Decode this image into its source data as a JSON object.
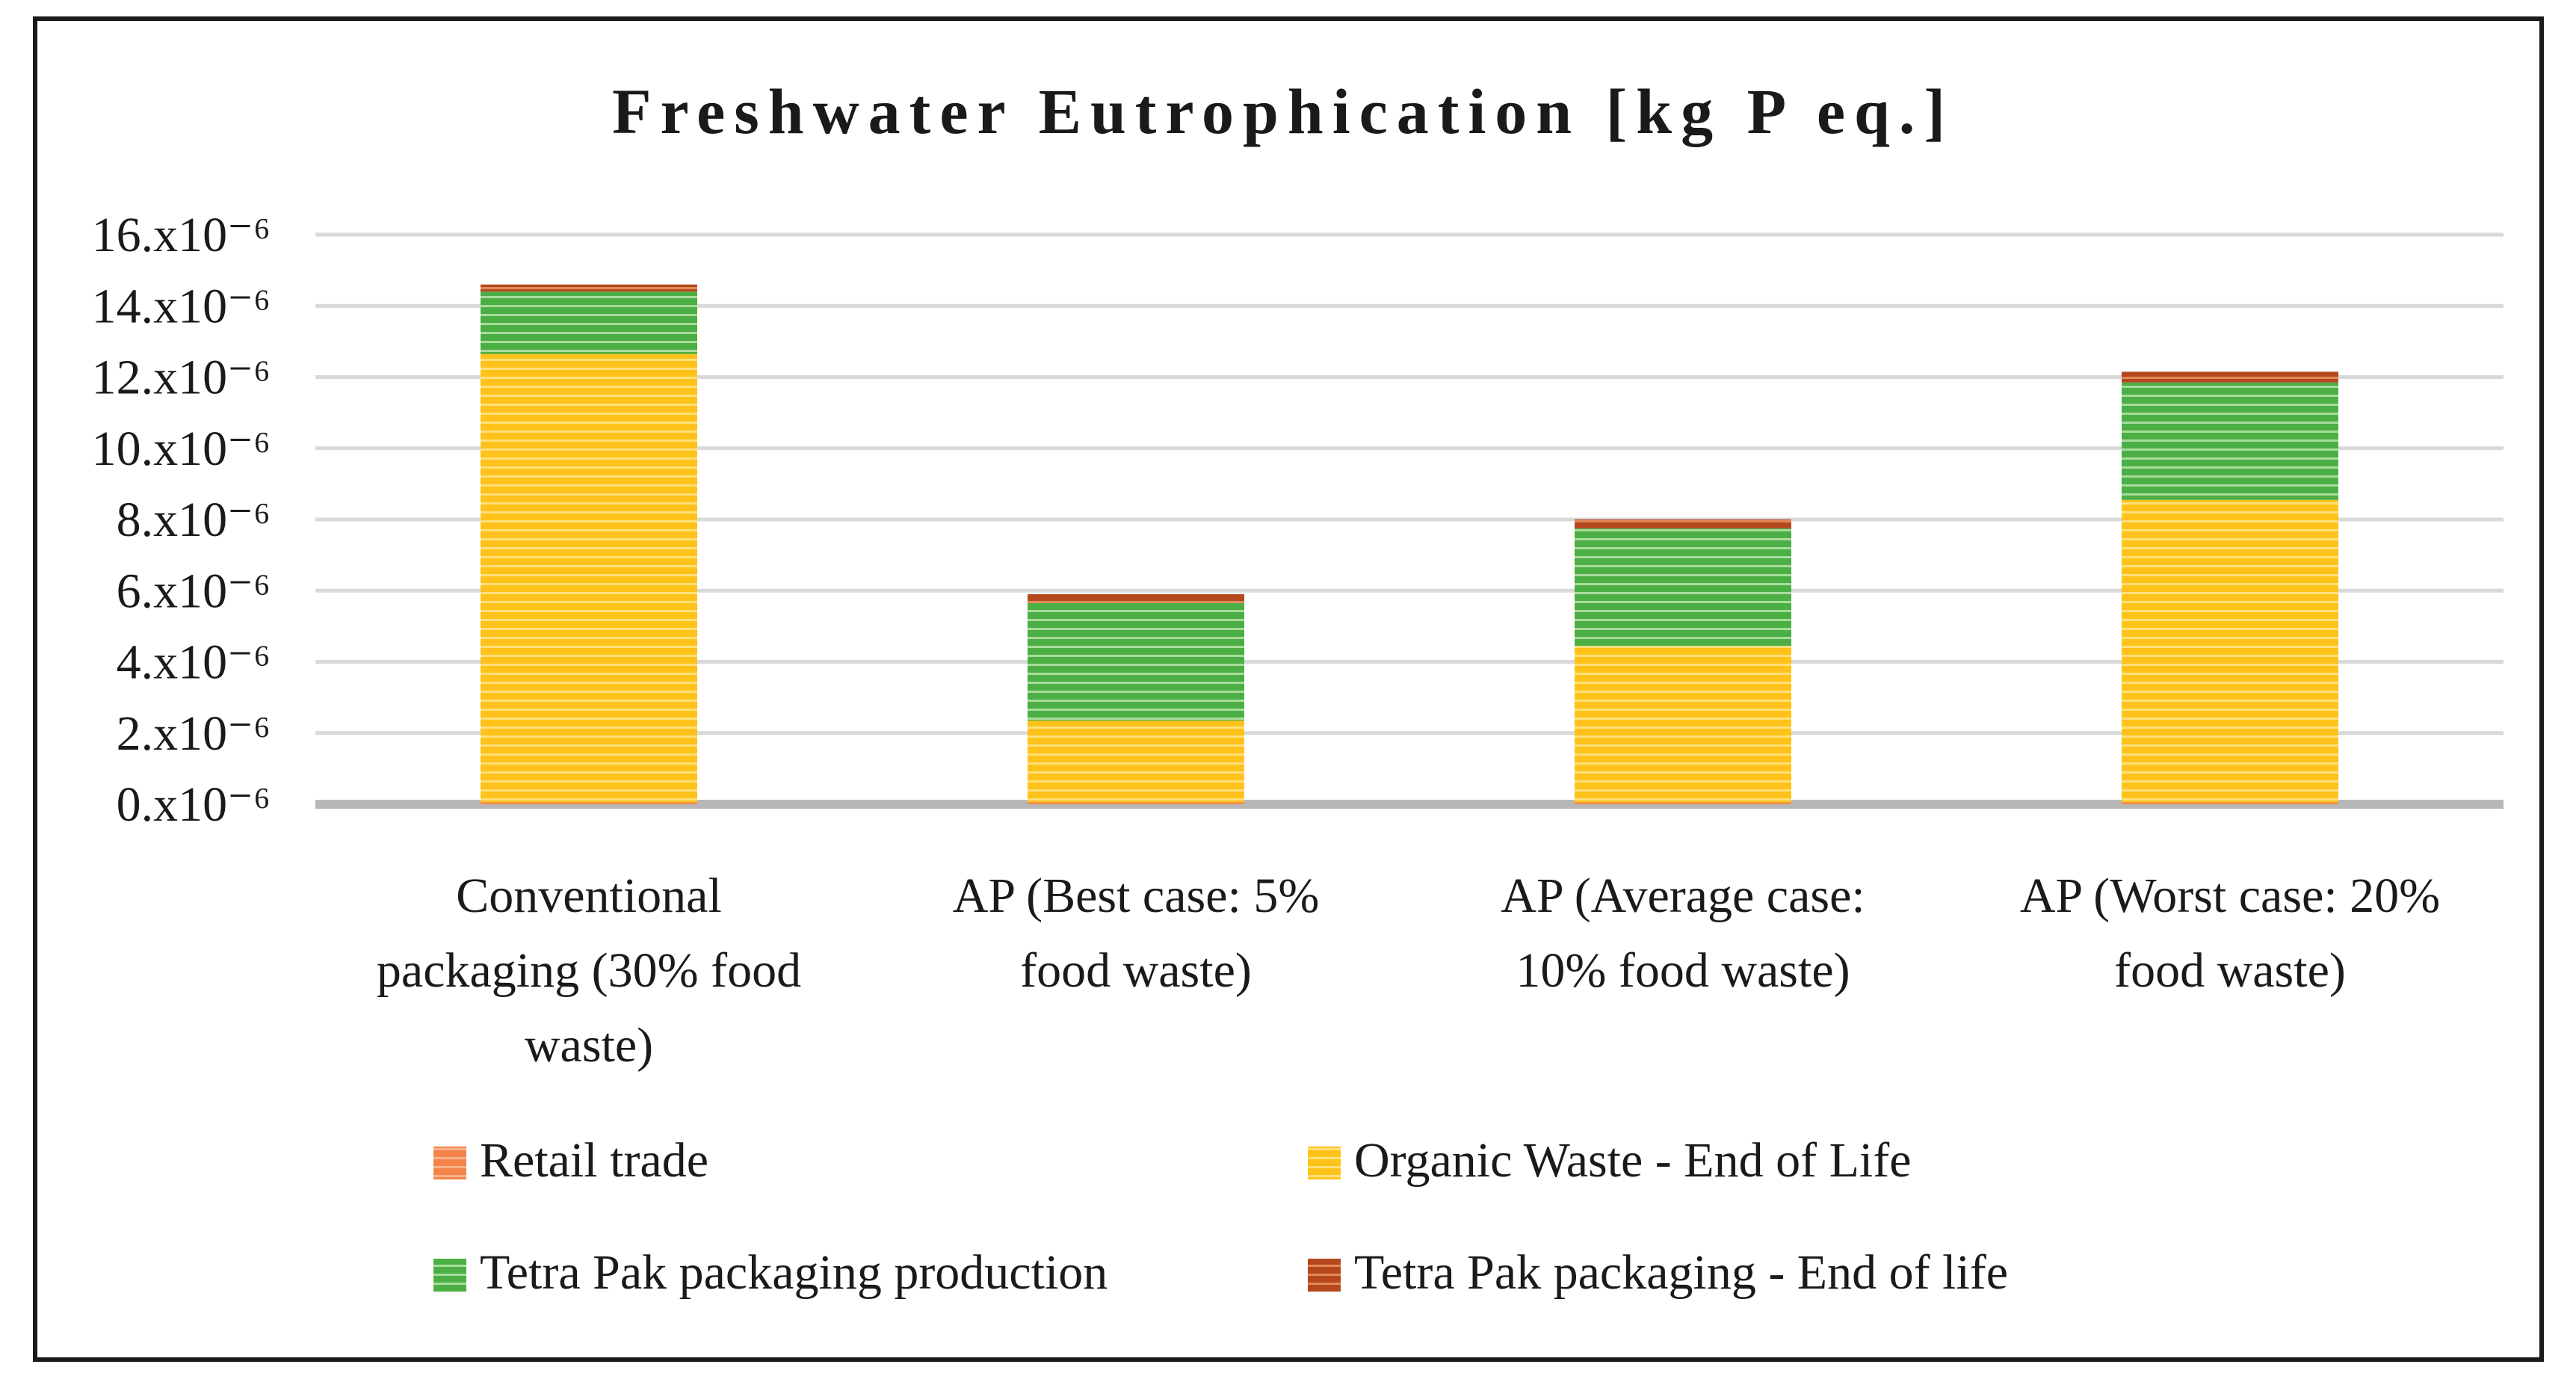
{
  "chart_data": {
    "type": "bar",
    "stacked": true,
    "title": "Freshwater Eutrophication [kg P eq.]",
    "xlabel": "",
    "ylabel": "",
    "ylim": [
      0,
      16
    ],
    "y_ticks": [
      0,
      2,
      4,
      6,
      8,
      10,
      12,
      14,
      16
    ],
    "y_tick_labels": [
      "0.x10⁻⁶",
      "2.x10⁻⁶",
      "4.x10⁻⁶",
      "6.x10⁻⁶",
      "8.x10⁻⁶",
      "10.x10⁻⁶",
      "12.x10⁻⁶",
      "14.x10⁻⁶",
      "16.x10⁻⁶"
    ],
    "grid": true,
    "categories": [
      "Conventional packaging (30% food waste)",
      "AP (Best case: 5% food waste)",
      "AP (Average case: 10% food waste)",
      "AP (Worst case: 20% food waste)"
    ],
    "category_lines": [
      [
        "Conventional",
        "packaging (30% food",
        "waste)"
      ],
      [
        "AP (Best case: 5%",
        "food waste)"
      ],
      [
        "AP (Average case:",
        "10% food waste)"
      ],
      [
        "AP (Worst case: 20%",
        "food waste)"
      ]
    ],
    "series": [
      {
        "name": "Retail trade",
        "values": [
          0.05,
          0.05,
          0.05,
          0.05
        ],
        "color": "#f4844a",
        "stripe": "#f7b48a"
      },
      {
        "name": "Organic Waste - End of Life",
        "values": [
          12.6,
          2.3,
          4.4,
          8.5
        ],
        "color": "#ffc21a",
        "stripe": "#ffe07a"
      },
      {
        "name": "Tetra Pak packaging production",
        "values": [
          1.75,
          3.3,
          3.3,
          3.3
        ],
        "color": "#4caf45",
        "stripe": "#a8dc9b"
      },
      {
        "name": "Tetra Pak packaging - End of life",
        "values": [
          0.2,
          0.25,
          0.25,
          0.3
        ],
        "color": "#b5481f",
        "stripe": "#e08a55"
      }
    ],
    "legend_position": "bottom"
  }
}
